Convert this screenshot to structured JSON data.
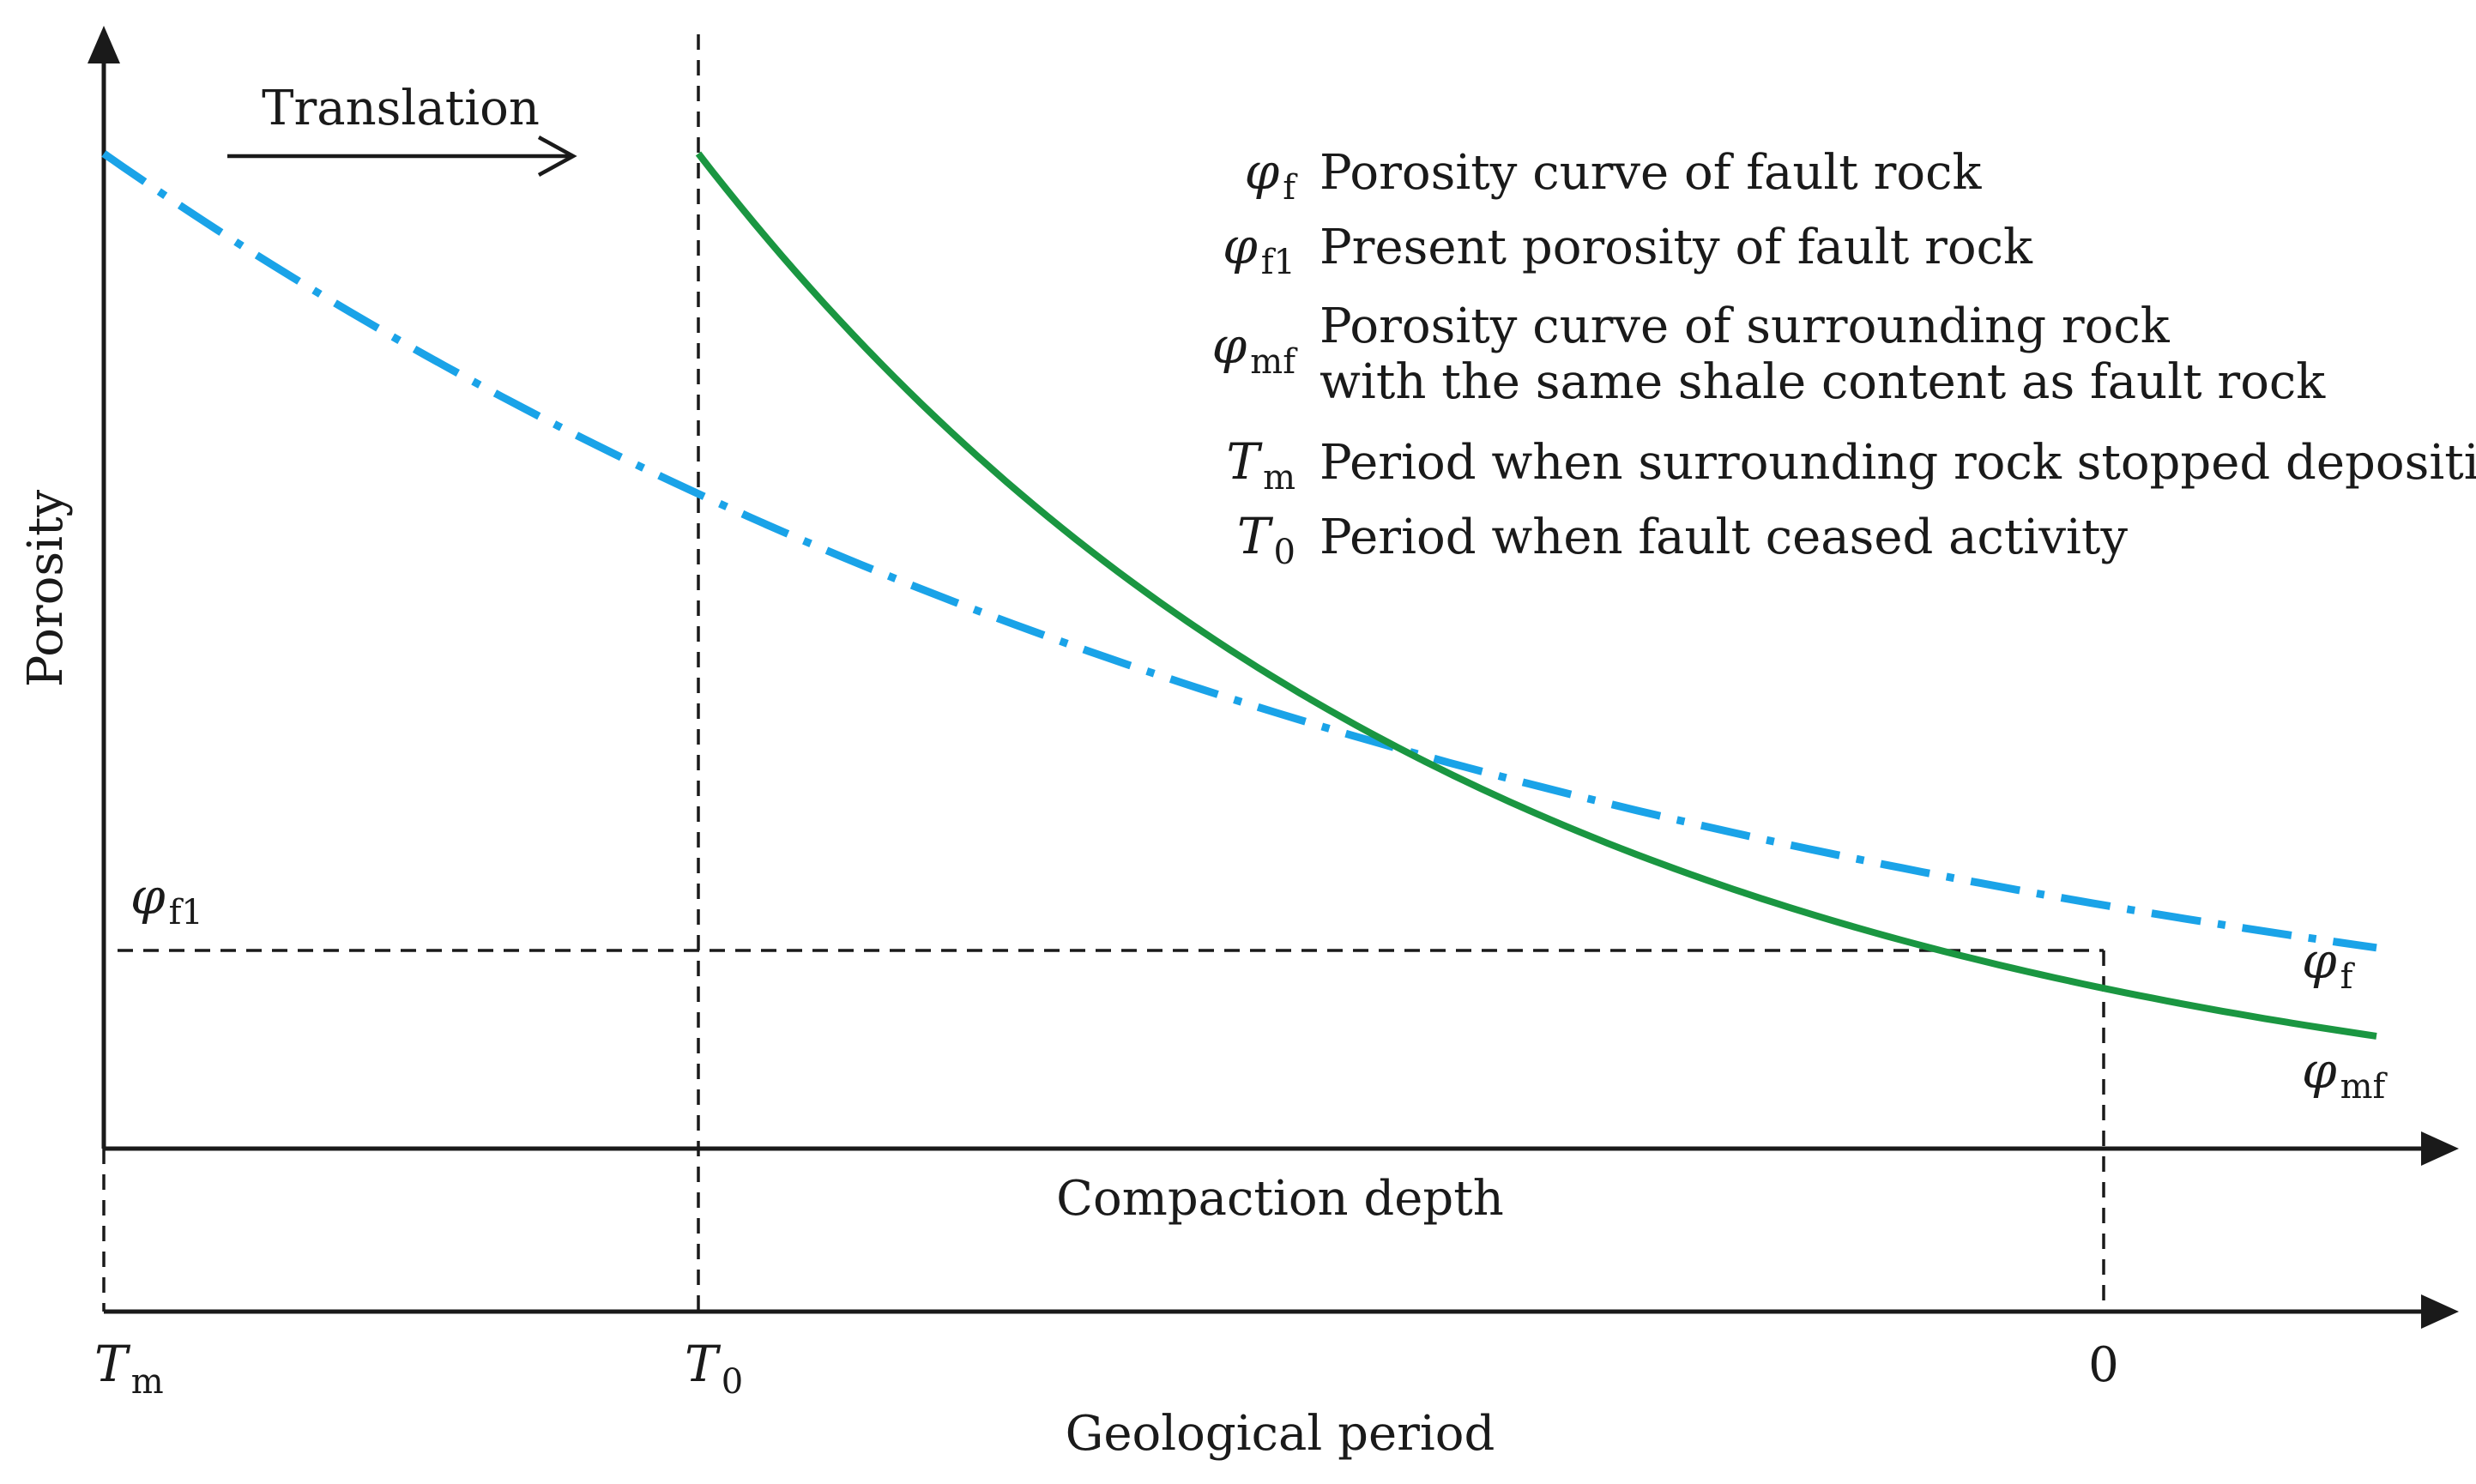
{
  "figure": {
    "annotation": "Translation",
    "y_axis_label": "Porosity",
    "x_axis_label": "Compaction depth",
    "time_axis_label": "Geological period",
    "time_ticks": [
      {
        "symbol": "T",
        "sub": "m"
      },
      {
        "symbol": "T",
        "sub": "0"
      },
      {
        "text": "0"
      }
    ],
    "phi_f1_marker": {
      "symbol": "φ",
      "sub": "f1"
    }
  },
  "legend": [
    {
      "symbol": "φ",
      "sub": "f",
      "lines": [
        "Porosity curve of fault rock"
      ]
    },
    {
      "symbol": "φ",
      "sub": "f1",
      "lines": [
        "Present porosity of fault rock"
      ]
    },
    {
      "symbol": "φ",
      "sub": "mf",
      "lines": [
        "Porosity curve of  surrounding rock",
        "with the same shale content as fault rock"
      ]
    },
    {
      "symbol": "T",
      "sub": "m",
      "lines": [
        "Period when surrounding rock stopped  depositing"
      ]
    },
    {
      "symbol": "T",
      "sub": "0",
      "lines": [
        "Period when fault ceased activity"
      ]
    }
  ],
  "curve_labels": {
    "phi_f": {
      "symbol": "φ",
      "sub": "f"
    },
    "phi_mf": {
      "symbol": "φ",
      "sub": "mf"
    }
  },
  "colors": {
    "phi_f_curve": "#1a9641",
    "phi_mf_curve": "#1aa3e8",
    "axes": "#1a1a1a",
    "guides": "#1a1a1a"
  },
  "curves": {
    "phi_f": {
      "style": "solid",
      "start": 0.98,
      "decay": 2.18,
      "end_depth": 0.84
    },
    "phi_mf": {
      "style": "dash-dot",
      "start": 0.98,
      "decay": 1.6,
      "end_depth": 1.0
    }
  }
}
